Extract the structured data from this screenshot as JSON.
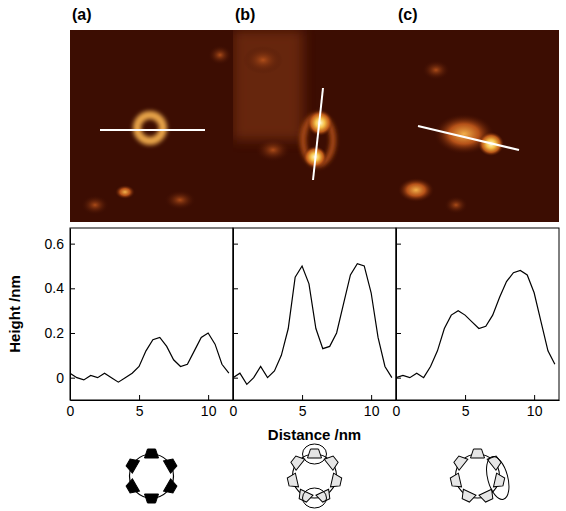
{
  "chart_data": [
    {
      "type": "line",
      "title": "(a)",
      "y_label": "Height /nm",
      "color": "#000000",
      "x": [
        0,
        0.5,
        1,
        1.5,
        2,
        2.5,
        3,
        3.5,
        4,
        4.5,
        5,
        5.5,
        6,
        6.5,
        7,
        7.5,
        8,
        8.5,
        9,
        9.5,
        10,
        10.5,
        11,
        11.5
      ],
      "values": [
        0.02,
        0.0,
        -0.01,
        0.01,
        0.0,
        0.02,
        0.0,
        -0.02,
        0.0,
        0.02,
        0.05,
        0.12,
        0.17,
        0.18,
        0.14,
        0.08,
        0.05,
        0.06,
        0.12,
        0.18,
        0.2,
        0.15,
        0.06,
        0.02
      ],
      "xlim": [
        0,
        11.8
      ],
      "ylim": [
        -0.1,
        0.67
      ],
      "xticks": [
        0,
        5,
        10
      ],
      "yticks": [
        0,
        0.2,
        0.4,
        0.6
      ]
    },
    {
      "type": "line",
      "title": "(b)",
      "x_label": "Distance /nm",
      "color": "#000000",
      "tick_labels": "x",
      "x": [
        0,
        0.5,
        1,
        1.5,
        2,
        2.5,
        3,
        3.5,
        4,
        4.5,
        5,
        5.5,
        6,
        6.5,
        7,
        7.5,
        8,
        8.5,
        9,
        9.5,
        10,
        10.5,
        11,
        11.5
      ],
      "values": [
        0.0,
        0.02,
        -0.03,
        0.0,
        0.05,
        0.0,
        0.03,
        0.1,
        0.22,
        0.45,
        0.5,
        0.42,
        0.22,
        0.13,
        0.14,
        0.2,
        0.33,
        0.46,
        0.51,
        0.5,
        0.38,
        0.18,
        0.05,
        0.0
      ],
      "xlim": [
        0,
        11.8
      ],
      "ylim": [
        -0.1,
        0.67
      ],
      "xticks": [
        0,
        5,
        10
      ],
      "yticks": [
        0,
        0.2,
        0.4,
        0.6
      ]
    },
    {
      "type": "line",
      "title": "(c)",
      "color": "#000000",
      "tick_labels": "x",
      "x": [
        0,
        0.5,
        1,
        1.5,
        2,
        2.5,
        3,
        3.5,
        4,
        4.5,
        5,
        5.5,
        6,
        6.5,
        7,
        7.5,
        8,
        8.5,
        9,
        9.5,
        10,
        10.5,
        11,
        11.5
      ],
      "values": [
        0.0,
        0.01,
        0.0,
        0.02,
        0.0,
        0.05,
        0.12,
        0.22,
        0.28,
        0.3,
        0.28,
        0.25,
        0.22,
        0.23,
        0.28,
        0.36,
        0.43,
        0.47,
        0.48,
        0.46,
        0.38,
        0.25,
        0.12,
        0.06
      ],
      "xlim": [
        0,
        11.8
      ],
      "ylim": [
        -0.1,
        0.67
      ],
      "xticks": [
        0,
        5,
        10
      ],
      "yticks": [
        0,
        0.2,
        0.4,
        0.6
      ]
    }
  ]
}
